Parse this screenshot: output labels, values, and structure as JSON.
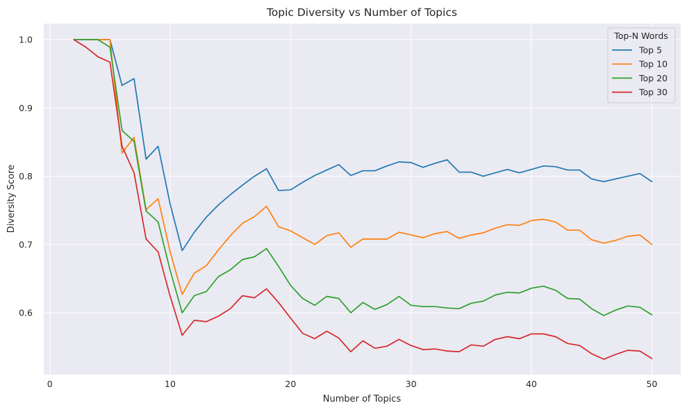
{
  "chart_data": {
    "type": "line",
    "title": "Topic Diversity vs Number of Topics",
    "xlabel": "Number of Topics",
    "ylabel": "Diversity Score",
    "xlim": [
      -0.5,
      52.4
    ],
    "ylim": [
      0.5095,
      1.0235
    ],
    "xticks": [
      0,
      10,
      20,
      30,
      40,
      50
    ],
    "xtick_labels": [
      "0",
      "10",
      "20",
      "30",
      "40",
      "50"
    ],
    "yticks": [
      0.6,
      0.7,
      0.8,
      0.9,
      1.0
    ],
    "ytick_labels": [
      "0.6",
      "0.7",
      "0.8",
      "0.9",
      "1.0"
    ],
    "grid": true,
    "legend": {
      "title": "Top-N Words",
      "position": "top-right"
    },
    "x": [
      2,
      3,
      4,
      5,
      6,
      7,
      8,
      9,
      10,
      11,
      12,
      13,
      14,
      15,
      16,
      17,
      18,
      19,
      20,
      21,
      22,
      23,
      24,
      25,
      26,
      27,
      28,
      29,
      30,
      31,
      32,
      33,
      34,
      35,
      36,
      37,
      38,
      39,
      40,
      41,
      42,
      43,
      44,
      45,
      46,
      47,
      48,
      49,
      50
    ],
    "series": [
      {
        "name": "Top 5",
        "color": "#1f77b4",
        "values": [
          1.0,
          1.0,
          1.0,
          1.0,
          0.933,
          0.943,
          0.825,
          0.844,
          0.759,
          0.691,
          0.718,
          0.74,
          0.758,
          0.773,
          0.787,
          0.8,
          0.811,
          0.779,
          0.78,
          0.791,
          0.801,
          0.809,
          0.817,
          0.801,
          0.808,
          0.808,
          0.815,
          0.821,
          0.82,
          0.813,
          0.819,
          0.824,
          0.806,
          0.806,
          0.8,
          0.805,
          0.81,
          0.805,
          0.81,
          0.815,
          0.814,
          0.809,
          0.809,
          0.796,
          0.792,
          0.796,
          0.8,
          0.804,
          0.792
        ]
      },
      {
        "name": "Top 10",
        "color": "#ff7f0e",
        "values": [
          1.0,
          1.0,
          1.0,
          1.0,
          0.834,
          0.857,
          0.751,
          0.767,
          0.689,
          0.627,
          0.658,
          0.669,
          0.692,
          0.713,
          0.731,
          0.741,
          0.756,
          0.726,
          0.72,
          0.71,
          0.7,
          0.713,
          0.717,
          0.696,
          0.708,
          0.708,
          0.708,
          0.718,
          0.714,
          0.71,
          0.716,
          0.719,
          0.709,
          0.714,
          0.717,
          0.724,
          0.729,
          0.728,
          0.735,
          0.737,
          0.733,
          0.721,
          0.721,
          0.707,
          0.702,
          0.706,
          0.712,
          0.714,
          0.7
        ]
      },
      {
        "name": "Top 20",
        "color": "#2ca02c",
        "values": [
          1.0,
          1.0,
          1.0,
          0.989,
          0.867,
          0.851,
          0.749,
          0.733,
          0.662,
          0.6,
          0.625,
          0.631,
          0.653,
          0.663,
          0.678,
          0.682,
          0.694,
          0.668,
          0.64,
          0.621,
          0.611,
          0.624,
          0.621,
          0.6,
          0.615,
          0.605,
          0.612,
          0.624,
          0.611,
          0.609,
          0.609,
          0.607,
          0.606,
          0.614,
          0.617,
          0.626,
          0.63,
          0.629,
          0.636,
          0.639,
          0.633,
          0.621,
          0.62,
          0.606,
          0.596,
          0.604,
          0.61,
          0.608,
          0.597
        ]
      },
      {
        "name": "Top 30",
        "color": "#d62728",
        "values": [
          1.0,
          0.989,
          0.975,
          0.967,
          0.844,
          0.805,
          0.708,
          0.689,
          0.624,
          0.567,
          0.589,
          0.587,
          0.595,
          0.606,
          0.625,
          0.622,
          0.635,
          0.615,
          0.592,
          0.57,
          0.562,
          0.573,
          0.563,
          0.543,
          0.559,
          0.548,
          0.551,
          0.561,
          0.552,
          0.546,
          0.547,
          0.544,
          0.543,
          0.553,
          0.551,
          0.561,
          0.565,
          0.562,
          0.569,
          0.569,
          0.565,
          0.555,
          0.552,
          0.54,
          0.532,
          0.539,
          0.545,
          0.544,
          0.533
        ]
      }
    ]
  }
}
